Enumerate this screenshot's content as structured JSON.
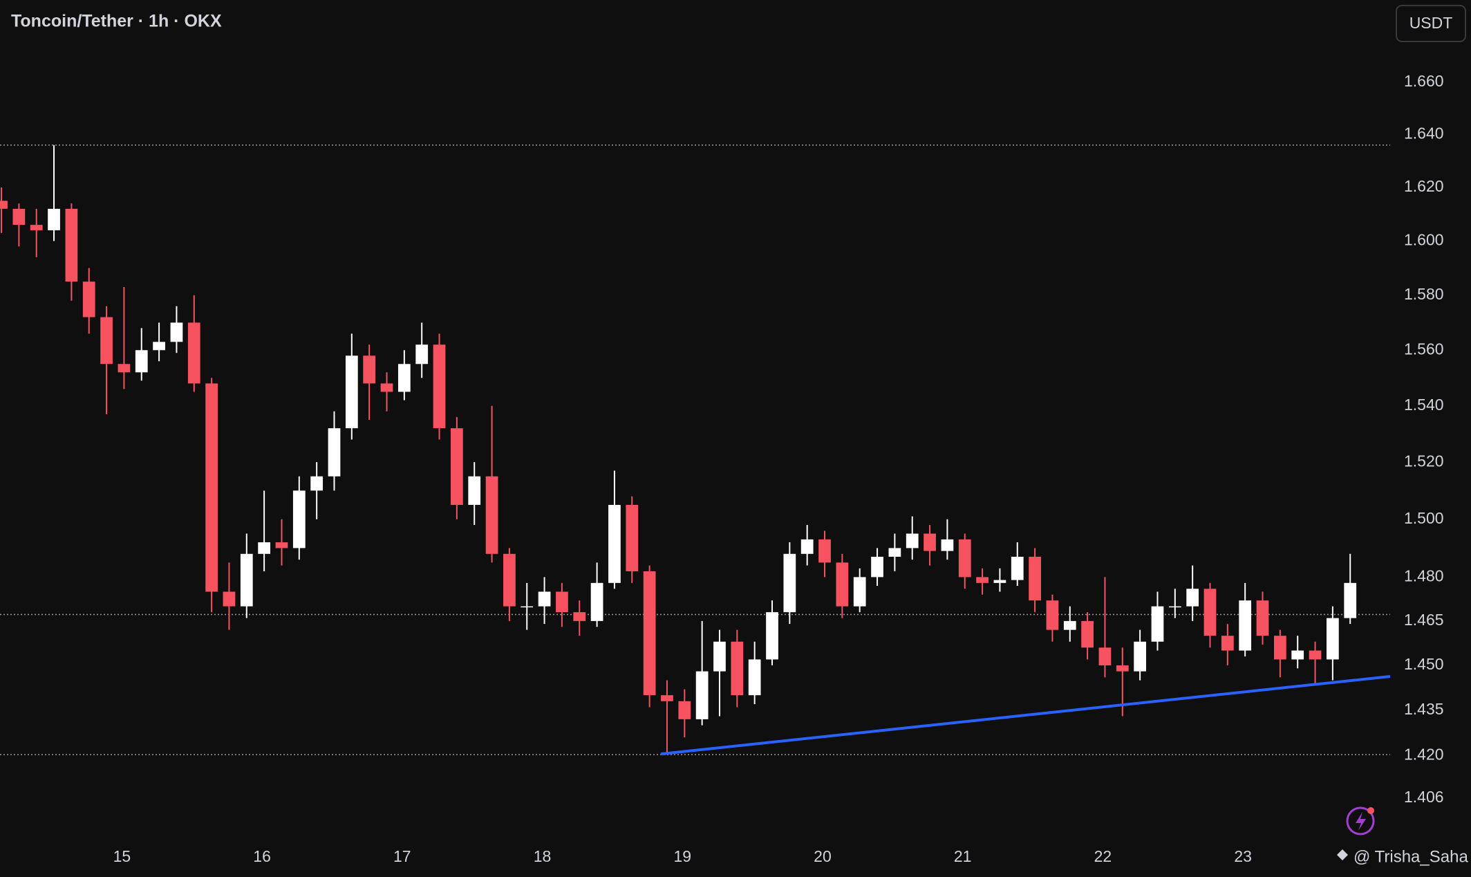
{
  "chart_data": {
    "type": "candlestick",
    "title": "Toncoin/Tether · 1h · OKX",
    "currency": "USDT",
    "watermark": "@ Trisha_Saha",
    "up_color": "#ffffff",
    "down_color": "#f7525f",
    "log_scale": true,
    "xlim": [
      14.13,
      24.05
    ],
    "xticks": [
      15,
      16,
      17,
      18,
      19,
      20,
      21,
      22,
      23
    ],
    "ylim": [
      1.393,
      1.692
    ],
    "yticks": [
      {
        "value": 1.66,
        "label": "1.660"
      },
      {
        "value": 1.64,
        "label": "1.640"
      },
      {
        "value": 1.62,
        "label": "1.620"
      },
      {
        "value": 1.6,
        "label": "1.600"
      },
      {
        "value": 1.58,
        "label": "1.580"
      },
      {
        "value": 1.56,
        "label": "1.560"
      },
      {
        "value": 1.54,
        "label": "1.540"
      },
      {
        "value": 1.52,
        "label": "1.520"
      },
      {
        "value": 1.5,
        "label": "1.500"
      },
      {
        "value": 1.48,
        "label": "1.480"
      },
      {
        "value": 1.465,
        "label": "1.465"
      },
      {
        "value": 1.45,
        "label": "1.450"
      },
      {
        "value": 1.435,
        "label": "1.435"
      },
      {
        "value": 1.42,
        "label": "1.420"
      },
      {
        "value": 1.406,
        "label": "1.406"
      }
    ],
    "horizontal_lines": {
      "color": "#9a9a9a",
      "values": [
        1.636,
        1.4672,
        1.4203
      ]
    },
    "trendline": {
      "color": "#2962ff",
      "x": [
        18.846,
        24.05
      ],
      "y": [
        1.4205,
        1.4463
      ]
    },
    "candles": [
      [
        14.14,
        1.615,
        1.62,
        1.603,
        1.612
      ],
      [
        14.265,
        1.612,
        1.614,
        1.598,
        1.606
      ],
      [
        14.39,
        1.606,
        1.612,
        1.594,
        1.604
      ],
      [
        14.515,
        1.604,
        1.636,
        1.6,
        1.612
      ],
      [
        14.64,
        1.612,
        1.614,
        1.578,
        1.585
      ],
      [
        14.765,
        1.585,
        1.59,
        1.566,
        1.572
      ],
      [
        14.89,
        1.572,
        1.576,
        1.537,
        1.555
      ],
      [
        15.015,
        1.555,
        1.583,
        1.546,
        1.552
      ],
      [
        15.14,
        1.552,
        1.568,
        1.549,
        1.56
      ],
      [
        15.265,
        1.56,
        1.57,
        1.556,
        1.563
      ],
      [
        15.39,
        1.563,
        1.576,
        1.559,
        1.57
      ],
      [
        15.515,
        1.57,
        1.58,
        1.545,
        1.548
      ],
      [
        15.64,
        1.548,
        1.55,
        1.468,
        1.475
      ],
      [
        15.765,
        1.475,
        1.485,
        1.462,
        1.47
      ],
      [
        15.89,
        1.47,
        1.495,
        1.466,
        1.488
      ],
      [
        16.015,
        1.488,
        1.51,
        1.482,
        1.492
      ],
      [
        16.14,
        1.492,
        1.5,
        1.484,
        1.49
      ],
      [
        16.265,
        1.49,
        1.515,
        1.486,
        1.51
      ],
      [
        16.39,
        1.51,
        1.52,
        1.5,
        1.515
      ],
      [
        16.515,
        1.515,
        1.538,
        1.51,
        1.532
      ],
      [
        16.64,
        1.532,
        1.566,
        1.528,
        1.558
      ],
      [
        16.765,
        1.558,
        1.562,
        1.535,
        1.548
      ],
      [
        16.89,
        1.548,
        1.552,
        1.538,
        1.545
      ],
      [
        17.015,
        1.545,
        1.56,
        1.542,
        1.555
      ],
      [
        17.14,
        1.555,
        1.57,
        1.55,
        1.562
      ],
      [
        17.265,
        1.562,
        1.566,
        1.528,
        1.532
      ],
      [
        17.39,
        1.532,
        1.536,
        1.5,
        1.505
      ],
      [
        17.515,
        1.505,
        1.52,
        1.498,
        1.515
      ],
      [
        17.64,
        1.515,
        1.54,
        1.485,
        1.488
      ],
      [
        17.765,
        1.488,
        1.49,
        1.465,
        1.47
      ],
      [
        17.89,
        1.47,
        1.478,
        1.462,
        1.47
      ],
      [
        18.015,
        1.47,
        1.48,
        1.464,
        1.475
      ],
      [
        18.14,
        1.475,
        1.478,
        1.463,
        1.468
      ],
      [
        18.265,
        1.468,
        1.472,
        1.46,
        1.465
      ],
      [
        18.39,
        1.465,
        1.485,
        1.463,
        1.478
      ],
      [
        18.515,
        1.478,
        1.517,
        1.476,
        1.505
      ],
      [
        18.64,
        1.505,
        1.508,
        1.478,
        1.482
      ],
      [
        18.765,
        1.482,
        1.484,
        1.436,
        1.44
      ],
      [
        18.89,
        1.44,
        1.445,
        1.4205,
        1.438
      ],
      [
        19.015,
        1.438,
        1.442,
        1.426,
        1.432
      ],
      [
        19.14,
        1.432,
        1.465,
        1.43,
        1.448
      ],
      [
        19.265,
        1.448,
        1.462,
        1.433,
        1.458
      ],
      [
        19.39,
        1.458,
        1.462,
        1.436,
        1.44
      ],
      [
        19.515,
        1.44,
        1.458,
        1.437,
        1.452
      ],
      [
        19.64,
        1.452,
        1.472,
        1.45,
        1.468
      ],
      [
        19.765,
        1.468,
        1.492,
        1.464,
        1.488
      ],
      [
        19.89,
        1.488,
        1.498,
        1.484,
        1.493
      ],
      [
        20.015,
        1.493,
        1.496,
        1.48,
        1.485
      ],
      [
        20.14,
        1.485,
        1.488,
        1.466,
        1.47
      ],
      [
        20.265,
        1.47,
        1.483,
        1.468,
        1.48
      ],
      [
        20.39,
        1.48,
        1.49,
        1.477,
        1.487
      ],
      [
        20.515,
        1.487,
        1.495,
        1.482,
        1.49
      ],
      [
        20.64,
        1.49,
        1.501,
        1.486,
        1.495
      ],
      [
        20.765,
        1.495,
        1.498,
        1.484,
        1.489
      ],
      [
        20.89,
        1.489,
        1.5,
        1.486,
        1.493
      ],
      [
        21.015,
        1.493,
        1.495,
        1.476,
        1.48
      ],
      [
        21.14,
        1.48,
        1.483,
        1.474,
        1.478
      ],
      [
        21.265,
        1.478,
        1.483,
        1.475,
        1.479
      ],
      [
        21.39,
        1.479,
        1.492,
        1.477,
        1.487
      ],
      [
        21.515,
        1.487,
        1.49,
        1.468,
        1.472
      ],
      [
        21.64,
        1.472,
        1.474,
        1.458,
        1.462
      ],
      [
        21.765,
        1.462,
        1.47,
        1.458,
        1.465
      ],
      [
        21.89,
        1.465,
        1.468,
        1.452,
        1.456
      ],
      [
        22.015,
        1.456,
        1.48,
        1.446,
        1.45
      ],
      [
        22.14,
        1.45,
        1.456,
        1.433,
        1.448
      ],
      [
        22.265,
        1.448,
        1.462,
        1.445,
        1.458
      ],
      [
        22.39,
        1.458,
        1.475,
        1.455,
        1.47
      ],
      [
        22.515,
        1.47,
        1.476,
        1.466,
        1.47
      ],
      [
        22.64,
        1.47,
        1.484,
        1.465,
        1.476
      ],
      [
        22.765,
        1.476,
        1.478,
        1.456,
        1.46
      ],
      [
        22.89,
        1.46,
        1.464,
        1.45,
        1.455
      ],
      [
        23.015,
        1.455,
        1.478,
        1.453,
        1.472
      ],
      [
        23.14,
        1.472,
        1.475,
        1.457,
        1.46
      ],
      [
        23.265,
        1.46,
        1.462,
        1.446,
        1.452
      ],
      [
        23.39,
        1.452,
        1.46,
        1.449,
        1.455
      ],
      [
        23.515,
        1.455,
        1.458,
        1.444,
        1.452
      ],
      [
        23.64,
        1.452,
        1.47,
        1.445,
        1.466
      ],
      [
        23.765,
        1.466,
        1.488,
        1.464,
        1.478
      ]
    ]
  }
}
